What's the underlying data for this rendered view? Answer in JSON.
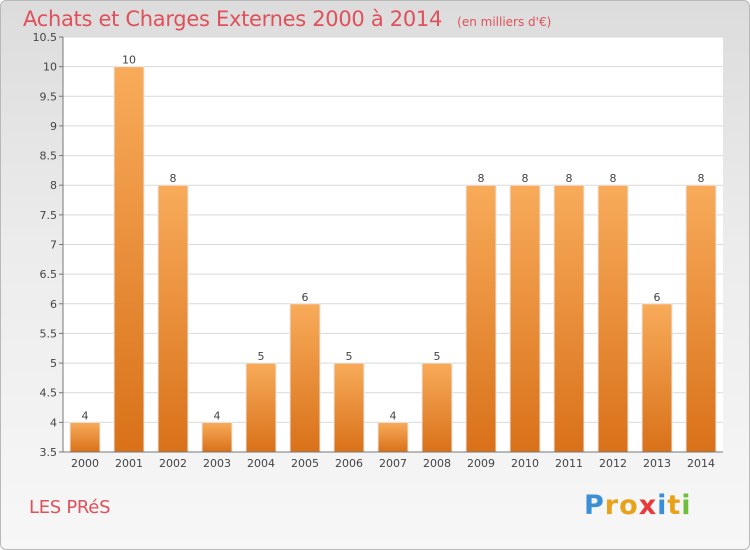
{
  "header": {
    "title": "Achats et Charges Externes 2000 à 2014",
    "unit": "(en milliers d'€)"
  },
  "footer": {
    "commune": "LES PRéS",
    "brand": "Proxiti",
    "brand_letter_colors": [
      "#3a8fd6",
      "#e8a21a",
      "#e8a21a",
      "#e83a3a",
      "#3a8fd6",
      "#e8a21a",
      "#6fbf3a"
    ]
  },
  "colors": {
    "bar_top": "#f8ab5a",
    "bar_bottom": "#d97119",
    "plot_background": "#ffffff",
    "grid": "#d9d9d9",
    "text": "#444444",
    "title": "#e0505a"
  },
  "chart_data": {
    "type": "bar",
    "categories": [
      "2000",
      "2001",
      "2002",
      "2003",
      "2004",
      "2005",
      "2006",
      "2007",
      "2008",
      "2009",
      "2010",
      "2011",
      "2012",
      "2013",
      "2014"
    ],
    "values": [
      4,
      10,
      8,
      4,
      5,
      6,
      5,
      4,
      5,
      8,
      8,
      8,
      8,
      6,
      8
    ],
    "data_labels": [
      "4",
      "10",
      "8",
      "4",
      "5",
      "6",
      "5",
      "4",
      "5",
      "8",
      "8",
      "8",
      "8",
      "6",
      "8"
    ],
    "ylim": [
      3.5,
      10.5
    ],
    "yticks": [
      "3.5",
      "4",
      "4.5",
      "5",
      "5.5",
      "6",
      "6.5",
      "7",
      "7.5",
      "8",
      "8.5",
      "9",
      "9.5",
      "10",
      "10.5"
    ],
    "grid": true,
    "legend": "none"
  }
}
